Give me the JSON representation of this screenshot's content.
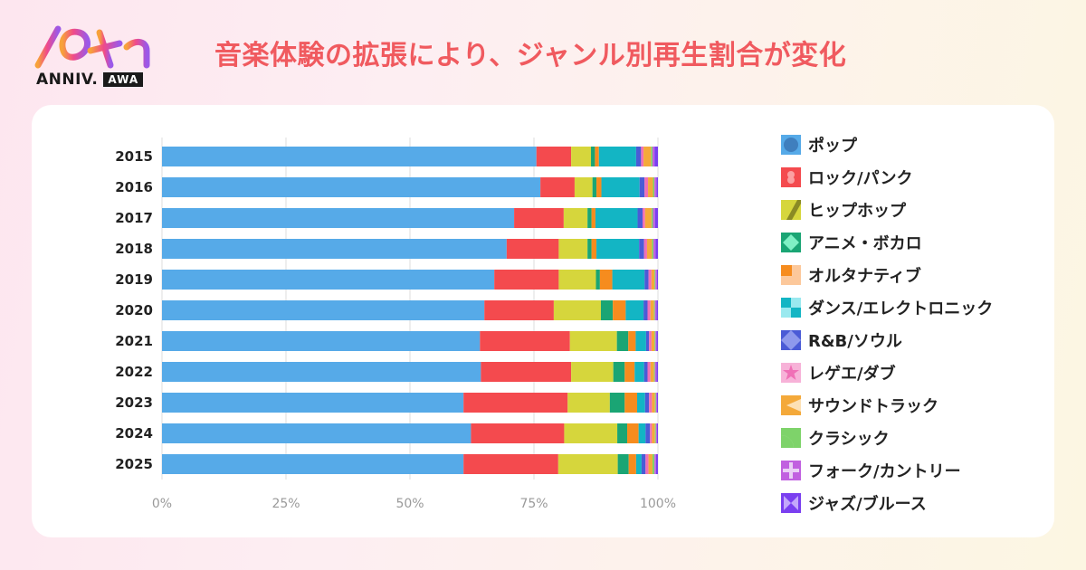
{
  "header": {
    "logo_text": "ANNIV.",
    "logo_badge": "AWA",
    "logo_mark_label": "10th",
    "title": "音楽体験の拡張により、ジャンル別再生割合が変化"
  },
  "colors": {
    "title": "#f05a5f",
    "grid": "#dddddd"
  },
  "chart_data": {
    "type": "bar",
    "orientation": "horizontal",
    "stacked": true,
    "normalized": true,
    "title": "音楽体験の拡張により、ジャンル別再生割合が変化",
    "xlabel": "",
    "ylabel": "",
    "xlim": [
      0,
      100
    ],
    "grid": true,
    "legend_position": "right",
    "x_ticks": [
      "0%",
      "25%",
      "50%",
      "75%",
      "100%"
    ],
    "x_tick_values": [
      0,
      25,
      50,
      75,
      100
    ],
    "categories": [
      "2015",
      "2016",
      "2017",
      "2018",
      "2019",
      "2020",
      "2021",
      "2022",
      "2023",
      "2024",
      "2025"
    ],
    "series": [
      {
        "name": "ポップ",
        "color": "#56aae8",
        "values": [
          75.5,
          76.3,
          71.0,
          69.5,
          67.0,
          65.0,
          64.3,
          64.3,
          60.8,
          62.3,
          60.8
        ]
      },
      {
        "name": "ロック/パンク",
        "color": "#f44a4e",
        "values": [
          7.0,
          6.9,
          10.0,
          10.5,
          13.0,
          14.0,
          18.2,
          18.2,
          21.0,
          18.8,
          19.1
        ]
      },
      {
        "name": "ヒップホップ",
        "color": "#d6d63c",
        "values": [
          4.0,
          3.6,
          4.8,
          5.8,
          7.5,
          9.5,
          9.5,
          8.5,
          8.5,
          10.7,
          12.0
        ]
      },
      {
        "name": "アニメ・ボカロ",
        "color": "#1aa574",
        "values": [
          0.8,
          0.8,
          0.8,
          0.8,
          0.8,
          2.4,
          2.3,
          2.3,
          3.0,
          2.0,
          2.2
        ]
      },
      {
        "name": "オルタナティブ",
        "color": "#f68c1e",
        "values": [
          0.8,
          1.0,
          0.8,
          1.0,
          2.5,
          2.6,
          1.5,
          2.0,
          2.5,
          2.3,
          1.5
        ]
      },
      {
        "name": "ダンス/エレクトロニック",
        "color": "#13b5c4",
        "values": [
          7.5,
          7.7,
          8.5,
          8.6,
          6.5,
          3.6,
          2.1,
          1.9,
          1.6,
          1.4,
          1.1
        ]
      },
      {
        "name": "R&B/ソウル",
        "color": "#4a5bd6",
        "values": [
          1.0,
          1.0,
          1.0,
          1.0,
          0.8,
          0.8,
          0.6,
          0.7,
          0.8,
          0.9,
          0.8
        ]
      },
      {
        "name": "レゲエ/ダブ",
        "color": "#f06fb6",
        "values": [
          0.5,
          0.7,
          0.5,
          0.6,
          0.6,
          0.6,
          0.5,
          0.6,
          0.6,
          0.4,
          0.6
        ]
      },
      {
        "name": "サウンドトラック",
        "color": "#f4a93a",
        "values": [
          1.5,
          1.0,
          1.3,
          1.0,
          0.6,
          0.7,
          0.6,
          0.7,
          0.6,
          0.6,
          0.8
        ]
      },
      {
        "name": "クラシック",
        "color": "#7ed36a",
        "values": [
          0.3,
          0.3,
          0.3,
          0.3,
          0.2,
          0.2,
          0.2,
          0.2,
          0.2,
          0.2,
          0.4
        ]
      },
      {
        "name": "フォーク/カントリー",
        "color": "#c160e0",
        "values": [
          0.4,
          0.4,
          0.4,
          0.4,
          0.3,
          0.3,
          0.2,
          0.3,
          0.2,
          0.2,
          0.3
        ]
      },
      {
        "name": "ジャズ/ブルース",
        "color": "#7a3ff0",
        "values": [
          0.7,
          0.3,
          0.6,
          0.5,
          0.2,
          0.3,
          0.3,
          0.3,
          0.2,
          0.2,
          0.4
        ]
      }
    ]
  }
}
